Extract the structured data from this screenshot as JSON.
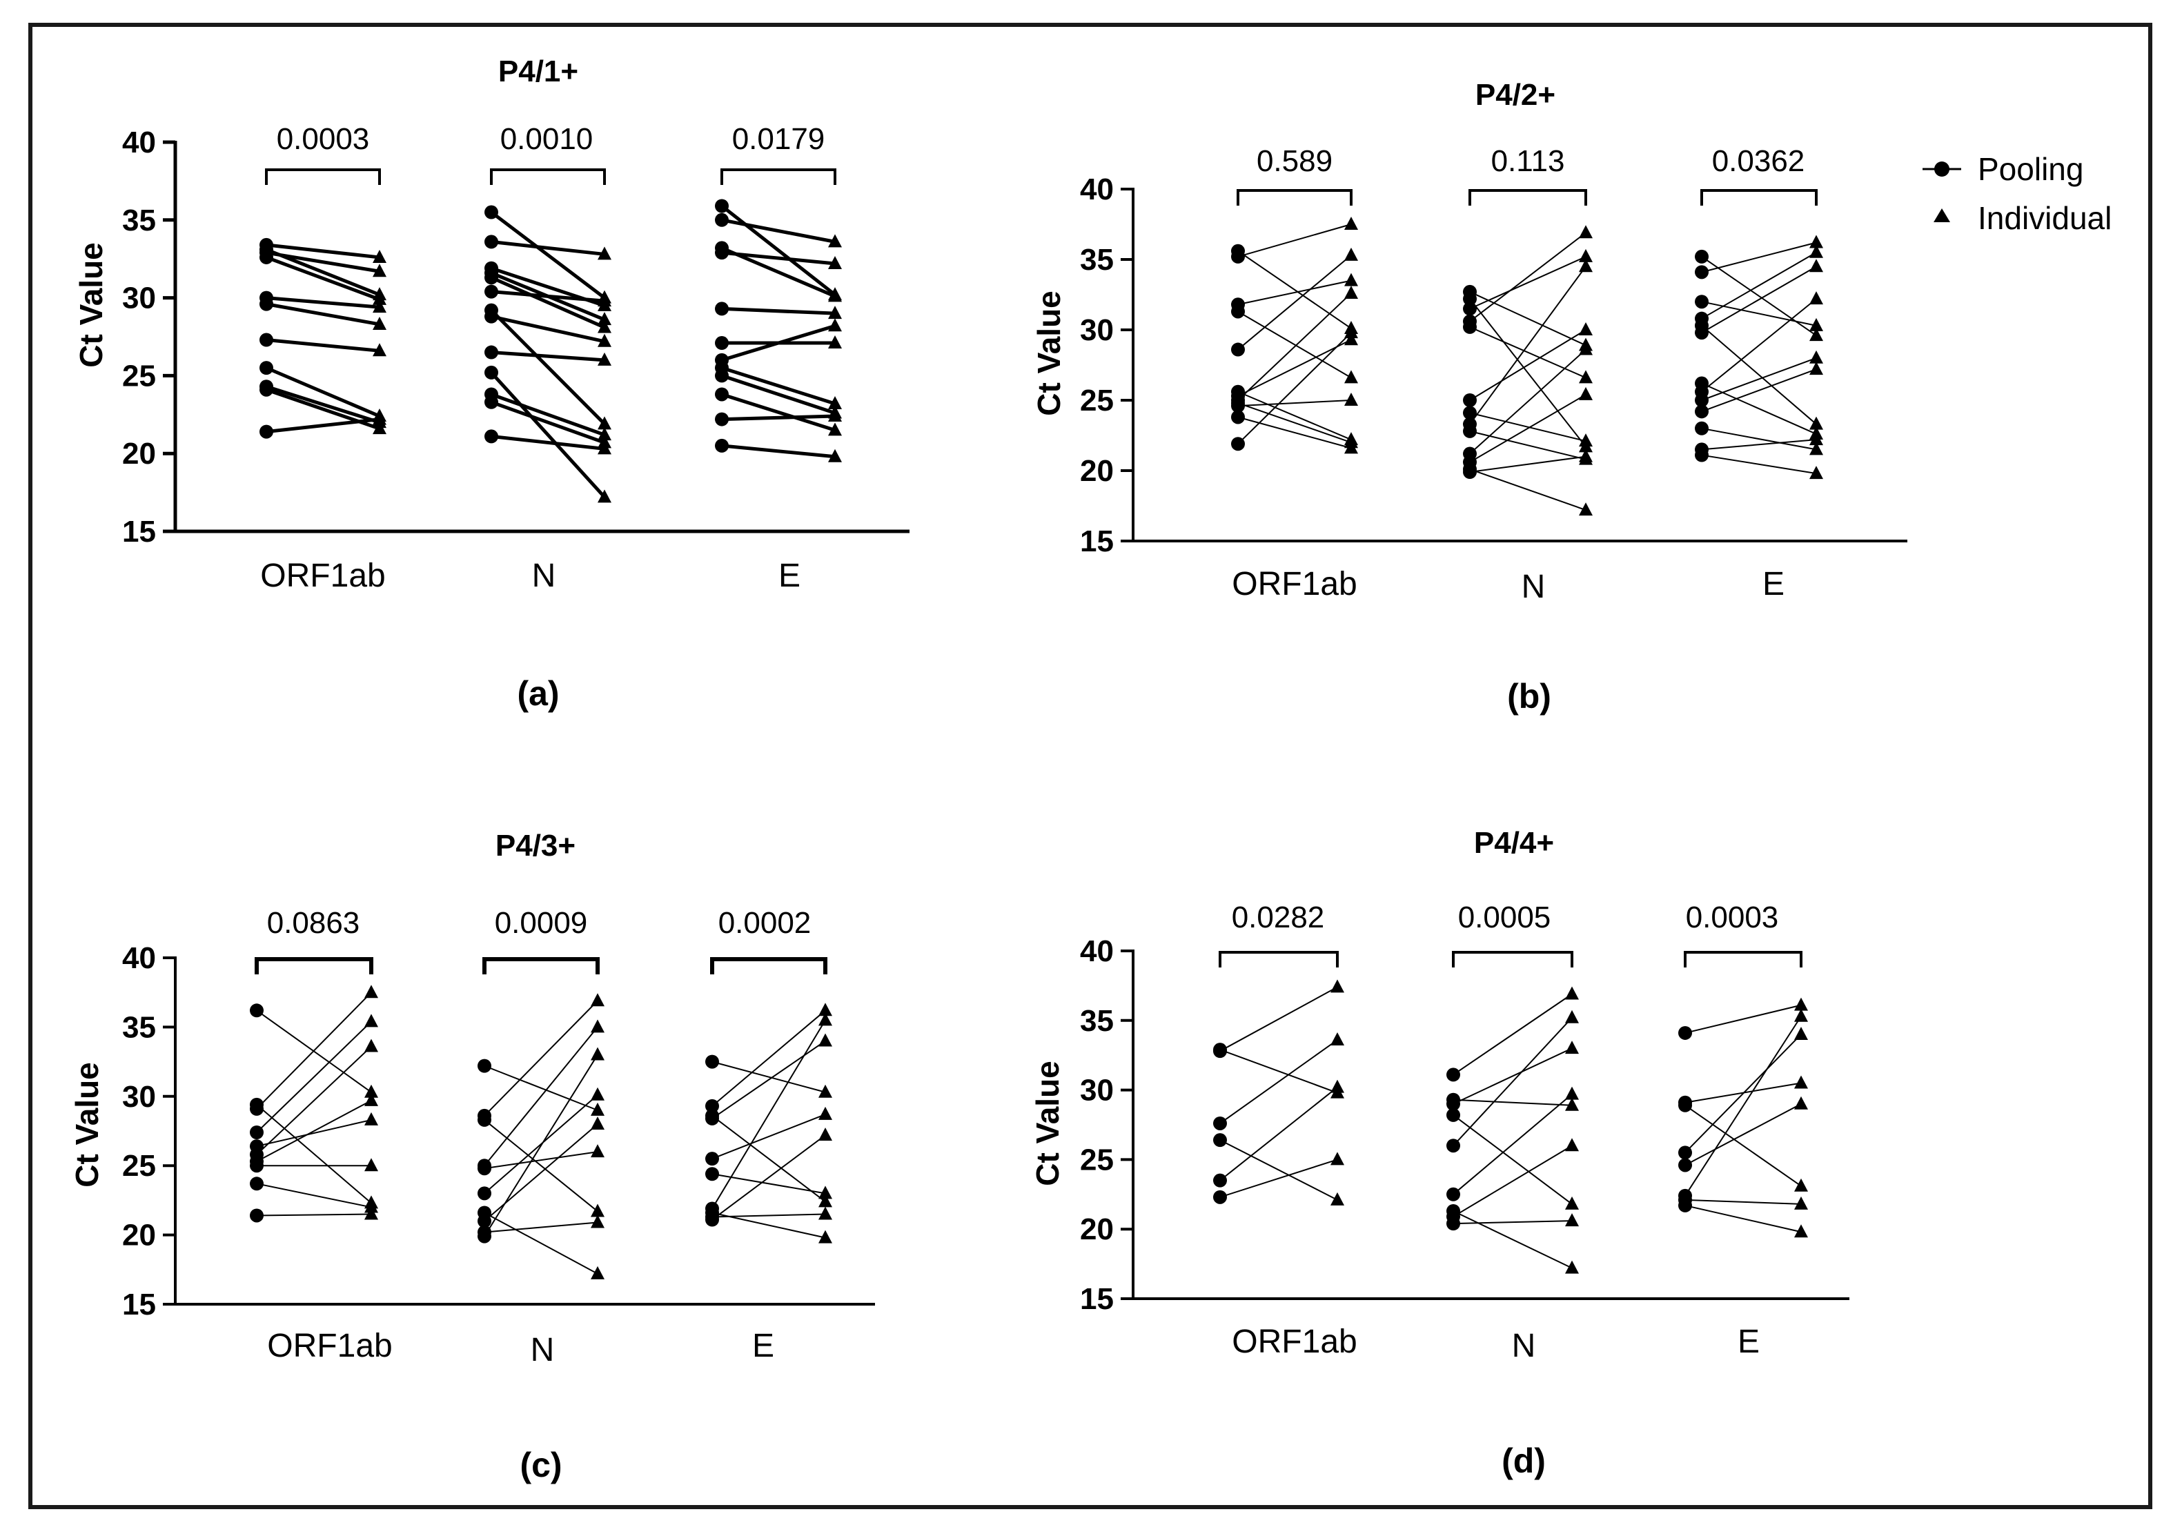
{
  "legend": {
    "pooling": "Pooling",
    "individual": "Individual"
  },
  "colors": {
    "ink": "#000000",
    "frame": "#1a1a1a"
  },
  "chart_data": [
    {
      "id": "a",
      "type": "scatter",
      "title": "P4/1+",
      "panel_label": "(a)",
      "ylabel": "Ct Value",
      "ylim": [
        15,
        40
      ],
      "yticks": [
        15,
        20,
        25,
        30,
        35,
        40
      ],
      "categories": [
        "ORF1ab",
        "N",
        "E"
      ],
      "p_values": [
        "0.0003",
        "0.0010",
        "0.0179"
      ],
      "groups": [
        {
          "pooling": [
            33.4,
            33.1,
            32.6,
            32.9,
            30.0,
            29.6,
            27.3,
            25.5,
            24.3,
            24.1,
            21.4
          ],
          "individual": [
            32.6,
            30.2,
            29.9,
            31.7,
            29.4,
            28.3,
            26.6,
            22.4,
            22.0,
            21.6,
            22.2
          ]
        },
        {
          "pooling": [
            35.5,
            33.6,
            31.9,
            31.6,
            31.3,
            30.4,
            29.2,
            28.8,
            26.5,
            25.2,
            23.8,
            23.3,
            21.1
          ],
          "individual": [
            30.0,
            32.8,
            29.5,
            28.6,
            28.1,
            29.8,
            21.9,
            27.2,
            26.0,
            17.2,
            21.2,
            20.7,
            20.3
          ]
        },
        {
          "pooling": [
            35.9,
            35.0,
            33.2,
            32.9,
            29.3,
            27.1,
            26.0,
            25.5,
            25.0,
            23.8,
            22.2,
            20.5
          ],
          "individual": [
            30.2,
            33.6,
            30.1,
            32.2,
            29.0,
            27.1,
            28.2,
            23.2,
            22.6,
            21.5,
            22.4,
            19.8
          ]
        }
      ]
    },
    {
      "id": "b",
      "type": "scatter",
      "title": "P4/2+",
      "panel_label": "(b)",
      "ylabel": "Ct Value",
      "ylim": [
        15,
        40
      ],
      "yticks": [
        15,
        20,
        25,
        30,
        35,
        40
      ],
      "categories": [
        "ORF1ab",
        "N",
        "E"
      ],
      "p_values": [
        "0.589",
        "0.113",
        "0.0362"
      ],
      "groups": [
        {
          "pooling": [
            35.6,
            35.2,
            31.8,
            31.3,
            28.6,
            25.6,
            25.3,
            25.0,
            24.8,
            24.6,
            23.8,
            21.9
          ],
          "individual": [
            30.1,
            37.5,
            33.5,
            26.6,
            35.3,
            22.2,
            29.3,
            32.6,
            22.0,
            25.0,
            21.6,
            29.8
          ]
        },
        {
          "pooling": [
            32.7,
            32.2,
            31.5,
            30.6,
            30.2,
            25.0,
            24.1,
            23.3,
            22.8,
            21.2,
            20.6,
            20.1,
            19.9
          ],
          "individual": [
            28.9,
            21.7,
            35.2,
            36.9,
            26.6,
            30.0,
            22.1,
            34.5,
            20.8,
            28.6,
            25.4,
            17.2,
            21.0
          ]
        },
        {
          "pooling": [
            35.2,
            34.1,
            32.0,
            30.8,
            30.3,
            29.8,
            26.2,
            25.6,
            25.0,
            24.2,
            23.0,
            21.5,
            21.1
          ],
          "individual": [
            29.6,
            36.2,
            30.3,
            35.5,
            23.3,
            34.5,
            22.6,
            32.2,
            28.0,
            27.2,
            21.5,
            22.2,
            19.8
          ]
        }
      ]
    },
    {
      "id": "c",
      "type": "scatter",
      "title": "P4/3+",
      "panel_label": "(c)",
      "ylabel": "Ct Value",
      "ylim": [
        15,
        40
      ],
      "yticks": [
        15,
        20,
        25,
        30,
        35,
        40
      ],
      "categories": [
        "ORF1ab",
        "N",
        "E"
      ],
      "p_values": [
        "0.0863",
        "0.0009",
        "0.0002"
      ],
      "groups": [
        {
          "pooling": [
            36.2,
            29.4,
            29.1,
            27.4,
            26.4,
            25.8,
            25.3,
            25.0,
            23.7,
            21.4
          ],
          "individual": [
            30.3,
            22.3,
            37.5,
            35.4,
            28.3,
            33.6,
            29.7,
            25.0,
            22.0,
            21.5
          ]
        },
        {
          "pooling": [
            32.2,
            28.6,
            28.3,
            25.0,
            24.8,
            23.0,
            21.6,
            21.0,
            20.2,
            19.9
          ],
          "individual": [
            29.0,
            36.9,
            21.7,
            35.0,
            26.0,
            30.1,
            17.2,
            28.0,
            20.9,
            33.0
          ]
        },
        {
          "pooling": [
            32.5,
            29.3,
            28.6,
            28.4,
            25.5,
            24.4,
            21.9,
            21.6,
            21.3,
            21.1
          ],
          "individual": [
            30.3,
            36.2,
            22.4,
            34.0,
            28.7,
            23.0,
            35.5,
            19.8,
            21.5,
            27.2
          ]
        }
      ]
    },
    {
      "id": "d",
      "type": "scatter",
      "title": "P4/4+",
      "panel_label": "(d)",
      "ylabel": "Ct Value",
      "ylim": [
        15,
        40
      ],
      "yticks": [
        15,
        20,
        25,
        30,
        35,
        40
      ],
      "categories": [
        "ORF1ab",
        "N",
        "E"
      ],
      "p_values": [
        "0.0282",
        "0.0005",
        "0.0003"
      ],
      "groups": [
        {
          "pooling": [
            32.8,
            32.9,
            27.6,
            26.4,
            23.5,
            22.3
          ],
          "individual": [
            37.4,
            29.8,
            33.6,
            22.1,
            30.2,
            25.0
          ]
        },
        {
          "pooling": [
            31.1,
            29.3,
            29.0,
            28.2,
            26.0,
            22.5,
            21.3,
            20.9,
            20.4
          ],
          "individual": [
            36.9,
            28.9,
            33.0,
            21.8,
            35.2,
            29.7,
            17.2,
            26.0,
            20.6
          ]
        },
        {
          "pooling": [
            34.1,
            29.1,
            28.9,
            25.5,
            24.6,
            22.4,
            22.1,
            21.7
          ],
          "individual": [
            36.1,
            30.5,
            23.1,
            34.0,
            29.0,
            35.3,
            21.8,
            19.8
          ]
        }
      ]
    }
  ]
}
